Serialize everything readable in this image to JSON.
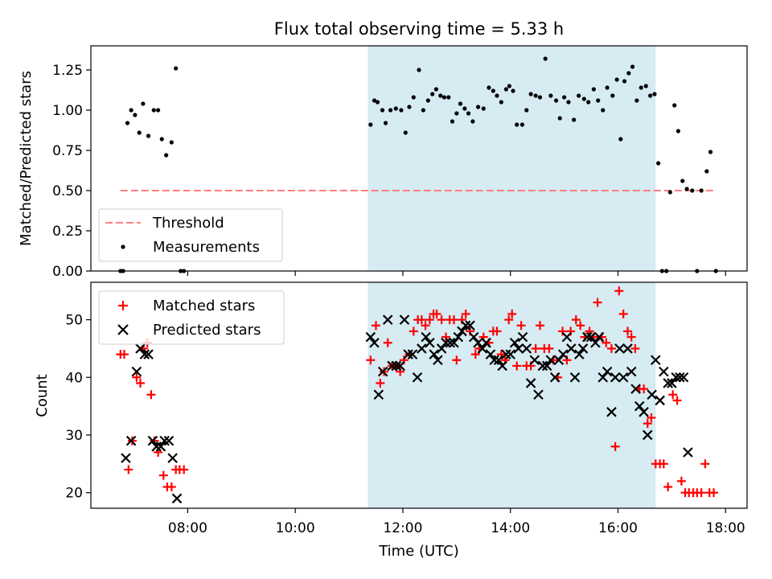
{
  "chart_data": {
    "title": "Flux total observing time = 5.33 h",
    "xlabel": "Time (UTC)",
    "x_unit": "hours UTC",
    "xlim": [
      6.2,
      18.4
    ],
    "x_ticks": [
      8,
      10,
      12,
      14,
      16,
      18
    ],
    "x_tick_labels": [
      "08:00",
      "10:00",
      "12:00",
      "14:00",
      "16:00",
      "18:00"
    ],
    "shaded_span": [
      11.35,
      16.7
    ],
    "colors": {
      "shade": "#add8e6",
      "threshold": "#ff7f7f",
      "measurements": "#000000",
      "matched": "#ff0000",
      "predicted": "#000000"
    },
    "panels": [
      {
        "type": "scatter",
        "ylabel": "Matched/Predicted stars",
        "ylim": [
          0,
          1.4
        ],
        "y_ticks": [
          0,
          0.25,
          0.5,
          0.75,
          1.0,
          1.25
        ],
        "y_tick_labels": [
          "0.00",
          "0.25",
          "0.50",
          "0.75",
          "1.00",
          "1.25"
        ],
        "legend_position": "lower-left",
        "legend": [
          {
            "label": "Threshold",
            "marker": "dashed-line"
          },
          {
            "label": "Measurements",
            "marker": "dot"
          }
        ],
        "threshold": {
          "y": 0.5,
          "x_start": 6.75,
          "x_end": 17.8
        },
        "measurements": [
          [
            6.75,
            0
          ],
          [
            6.8,
            0
          ],
          [
            6.88,
            0.92
          ],
          [
            6.95,
            1.0
          ],
          [
            7.02,
            0.97
          ],
          [
            7.1,
            0.86
          ],
          [
            7.17,
            1.04
          ],
          [
            7.27,
            0.84
          ],
          [
            7.37,
            1.0
          ],
          [
            7.45,
            1.0
          ],
          [
            7.52,
            0.82
          ],
          [
            7.6,
            0.72
          ],
          [
            7.7,
            0.8
          ],
          [
            7.78,
            1.26
          ],
          [
            7.87,
            0
          ],
          [
            7.93,
            0
          ],
          [
            11.4,
            0.91
          ],
          [
            11.47,
            1.06
          ],
          [
            11.53,
            1.05
          ],
          [
            11.62,
            1.0
          ],
          [
            11.68,
            0.92
          ],
          [
            11.77,
            1.0
          ],
          [
            11.87,
            1.01
          ],
          [
            11.97,
            1.0
          ],
          [
            12.05,
            0.86
          ],
          [
            12.12,
            1.02
          ],
          [
            12.2,
            1.08
          ],
          [
            12.3,
            1.25
          ],
          [
            12.38,
            1.0
          ],
          [
            12.47,
            1.06
          ],
          [
            12.55,
            1.1
          ],
          [
            12.62,
            1.13
          ],
          [
            12.7,
            1.09
          ],
          [
            12.77,
            1.08
          ],
          [
            12.85,
            1.08
          ],
          [
            12.92,
            0.93
          ],
          [
            13.0,
            0.98
          ],
          [
            13.07,
            1.04
          ],
          [
            13.15,
            1.01
          ],
          [
            13.22,
            0.98
          ],
          [
            13.3,
            0.93
          ],
          [
            13.4,
            1.02
          ],
          [
            13.5,
            1.01
          ],
          [
            13.6,
            1.14
          ],
          [
            13.68,
            1.12
          ],
          [
            13.75,
            1.09
          ],
          [
            13.83,
            1.05
          ],
          [
            13.92,
            1.13
          ],
          [
            13.98,
            1.15
          ],
          [
            14.05,
            1.12
          ],
          [
            14.12,
            0.91
          ],
          [
            14.22,
            0.91
          ],
          [
            14.3,
            1.0
          ],
          [
            14.38,
            1.1
          ],
          [
            14.47,
            1.09
          ],
          [
            14.55,
            1.08
          ],
          [
            14.65,
            1.32
          ],
          [
            14.75,
            1.09
          ],
          [
            14.85,
            1.06
          ],
          [
            14.92,
            0.95
          ],
          [
            15.0,
            1.08
          ],
          [
            15.08,
            1.05
          ],
          [
            15.18,
            0.94
          ],
          [
            15.27,
            1.09
          ],
          [
            15.37,
            1.07
          ],
          [
            15.45,
            1.05
          ],
          [
            15.55,
            1.13
          ],
          [
            15.63,
            1.06
          ],
          [
            15.72,
            1.0
          ],
          [
            15.8,
            1.14
          ],
          [
            15.9,
            1.09
          ],
          [
            15.98,
            1.19
          ],
          [
            16.05,
            0.82
          ],
          [
            16.12,
            1.18
          ],
          [
            16.2,
            1.23
          ],
          [
            16.27,
            1.27
          ],
          [
            16.35,
            1.06
          ],
          [
            16.43,
            1.14
          ],
          [
            16.52,
            1.15
          ],
          [
            16.6,
            1.09
          ],
          [
            16.68,
            1.1
          ],
          [
            16.75,
            0.67
          ],
          [
            16.82,
            0
          ],
          [
            16.9,
            0
          ],
          [
            16.97,
            0.49
          ],
          [
            17.05,
            1.03
          ],
          [
            17.12,
            0.87
          ],
          [
            17.2,
            0.56
          ],
          [
            17.28,
            0.51
          ],
          [
            17.38,
            0.5
          ],
          [
            17.47,
            0
          ],
          [
            17.55,
            0.5
          ],
          [
            17.65,
            0.62
          ],
          [
            17.72,
            0.74
          ],
          [
            17.82,
            0
          ]
        ]
      },
      {
        "type": "scatter",
        "ylabel": "Count",
        "ylim": [
          17.3,
          56.5
        ],
        "y_ticks": [
          20,
          30,
          40,
          50
        ],
        "y_tick_labels": [
          "20",
          "30",
          "40",
          "50"
        ],
        "legend_position": "upper-left",
        "legend": [
          {
            "label": "Matched stars",
            "marker": "plus"
          },
          {
            "label": "Predicted stars",
            "marker": "x"
          }
        ],
        "matched": [
          [
            6.75,
            44
          ],
          [
            6.82,
            44
          ],
          [
            6.9,
            24
          ],
          [
            6.97,
            29
          ],
          [
            7.05,
            40
          ],
          [
            7.12,
            39
          ],
          [
            7.18,
            45
          ],
          [
            7.25,
            46
          ],
          [
            7.32,
            37
          ],
          [
            7.38,
            29
          ],
          [
            7.45,
            27
          ],
          [
            7.55,
            23
          ],
          [
            7.62,
            21
          ],
          [
            7.7,
            21
          ],
          [
            7.78,
            24
          ],
          [
            7.85,
            24
          ],
          [
            7.93,
            24
          ],
          [
            11.4,
            43
          ],
          [
            11.5,
            49
          ],
          [
            11.58,
            39
          ],
          [
            11.65,
            41
          ],
          [
            11.72,
            46
          ],
          [
            11.8,
            42
          ],
          [
            11.87,
            42
          ],
          [
            11.95,
            41
          ],
          [
            12.02,
            43
          ],
          [
            12.12,
            44
          ],
          [
            12.2,
            48
          ],
          [
            12.28,
            50
          ],
          [
            12.35,
            50
          ],
          [
            12.42,
            49
          ],
          [
            12.5,
            50
          ],
          [
            12.57,
            51
          ],
          [
            12.63,
            51
          ],
          [
            12.72,
            50
          ],
          [
            12.8,
            47
          ],
          [
            12.87,
            50
          ],
          [
            12.95,
            50
          ],
          [
            13.0,
            43
          ],
          [
            13.1,
            50
          ],
          [
            13.17,
            51
          ],
          [
            13.25,
            48
          ],
          [
            13.35,
            44
          ],
          [
            13.42,
            45
          ],
          [
            13.5,
            47
          ],
          [
            13.6,
            46
          ],
          [
            13.68,
            48
          ],
          [
            13.75,
            48
          ],
          [
            13.83,
            44
          ],
          [
            13.9,
            43
          ],
          [
            13.97,
            50
          ],
          [
            14.03,
            51
          ],
          [
            14.12,
            42
          ],
          [
            14.2,
            49
          ],
          [
            14.3,
            42
          ],
          [
            14.38,
            42
          ],
          [
            14.47,
            45
          ],
          [
            14.55,
            49
          ],
          [
            14.63,
            45
          ],
          [
            14.72,
            45
          ],
          [
            14.8,
            43
          ],
          [
            14.88,
            40
          ],
          [
            14.97,
            48
          ],
          [
            15.05,
            43
          ],
          [
            15.12,
            48
          ],
          [
            15.22,
            50
          ],
          [
            15.3,
            49
          ],
          [
            15.38,
            47
          ],
          [
            15.47,
            48
          ],
          [
            15.55,
            47
          ],
          [
            15.62,
            53
          ],
          [
            15.7,
            47
          ],
          [
            15.78,
            46
          ],
          [
            15.88,
            45
          ],
          [
            15.95,
            28
          ],
          [
            16.02,
            55
          ],
          [
            16.1,
            51
          ],
          [
            16.18,
            48
          ],
          [
            16.25,
            47
          ],
          [
            16.32,
            45
          ],
          [
            16.4,
            38
          ],
          [
            16.48,
            38
          ],
          [
            16.55,
            32
          ],
          [
            16.62,
            33
          ],
          [
            16.7,
            25
          ],
          [
            16.78,
            25
          ],
          [
            16.85,
            25
          ],
          [
            16.93,
            21
          ],
          [
            17.02,
            37
          ],
          [
            17.1,
            36
          ],
          [
            17.18,
            22
          ],
          [
            17.25,
            20
          ],
          [
            17.32,
            20
          ],
          [
            17.4,
            20
          ],
          [
            17.47,
            20
          ],
          [
            17.55,
            20
          ],
          [
            17.62,
            25
          ],
          [
            17.7,
            20
          ],
          [
            17.78,
            20
          ]
        ],
        "predicted": [
          [
            6.85,
            26
          ],
          [
            6.95,
            29
          ],
          [
            7.05,
            41
          ],
          [
            7.12,
            45
          ],
          [
            7.2,
            44
          ],
          [
            7.27,
            44
          ],
          [
            7.35,
            29
          ],
          [
            7.42,
            28
          ],
          [
            7.5,
            28
          ],
          [
            7.57,
            29
          ],
          [
            7.65,
            29
          ],
          [
            7.72,
            26
          ],
          [
            7.8,
            19
          ],
          [
            11.4,
            47
          ],
          [
            11.47,
            46
          ],
          [
            11.55,
            37
          ],
          [
            11.63,
            41
          ],
          [
            11.72,
            50
          ],
          [
            11.8,
            42
          ],
          [
            11.88,
            42
          ],
          [
            11.95,
            42
          ],
          [
            12.03,
            50
          ],
          [
            12.1,
            44
          ],
          [
            12.18,
            44
          ],
          [
            12.27,
            40
          ],
          [
            12.35,
            45
          ],
          [
            12.43,
            47
          ],
          [
            12.5,
            46
          ],
          [
            12.58,
            44
          ],
          [
            12.65,
            43
          ],
          [
            12.72,
            45
          ],
          [
            12.8,
            46
          ],
          [
            12.88,
            46
          ],
          [
            12.95,
            46
          ],
          [
            13.03,
            47
          ],
          [
            13.1,
            48
          ],
          [
            13.17,
            49
          ],
          [
            13.25,
            49
          ],
          [
            13.32,
            47
          ],
          [
            13.4,
            46
          ],
          [
            13.48,
            45
          ],
          [
            13.55,
            46
          ],
          [
            13.63,
            44
          ],
          [
            13.7,
            43
          ],
          [
            13.78,
            43
          ],
          [
            13.85,
            42
          ],
          [
            13.92,
            44
          ],
          [
            14.0,
            44
          ],
          [
            14.08,
            46
          ],
          [
            14.15,
            45
          ],
          [
            14.23,
            47
          ],
          [
            14.3,
            45
          ],
          [
            14.38,
            39
          ],
          [
            14.45,
            43
          ],
          [
            14.52,
            37
          ],
          [
            14.6,
            42
          ],
          [
            14.68,
            42
          ],
          [
            14.75,
            43
          ],
          [
            14.83,
            40
          ],
          [
            14.9,
            43
          ],
          [
            14.98,
            44
          ],
          [
            15.05,
            47
          ],
          [
            15.13,
            45
          ],
          [
            15.2,
            40
          ],
          [
            15.28,
            44
          ],
          [
            15.35,
            45
          ],
          [
            15.43,
            47
          ],
          [
            15.5,
            47
          ],
          [
            15.58,
            46
          ],
          [
            15.65,
            47
          ],
          [
            15.72,
            40
          ],
          [
            15.8,
            41
          ],
          [
            15.88,
            34
          ],
          [
            15.95,
            40
          ],
          [
            16.03,
            45
          ],
          [
            16.1,
            40
          ],
          [
            16.18,
            45
          ],
          [
            16.25,
            41
          ],
          [
            16.33,
            38
          ],
          [
            16.4,
            35
          ],
          [
            16.48,
            34
          ],
          [
            16.55,
            30
          ],
          [
            16.63,
            37
          ],
          [
            16.7,
            43
          ],
          [
            16.78,
            36
          ],
          [
            16.85,
            41
          ],
          [
            16.93,
            39
          ],
          [
            17.0,
            39
          ],
          [
            17.08,
            40
          ],
          [
            17.15,
            40
          ],
          [
            17.22,
            40
          ],
          [
            17.3,
            27
          ]
        ]
      }
    ]
  }
}
